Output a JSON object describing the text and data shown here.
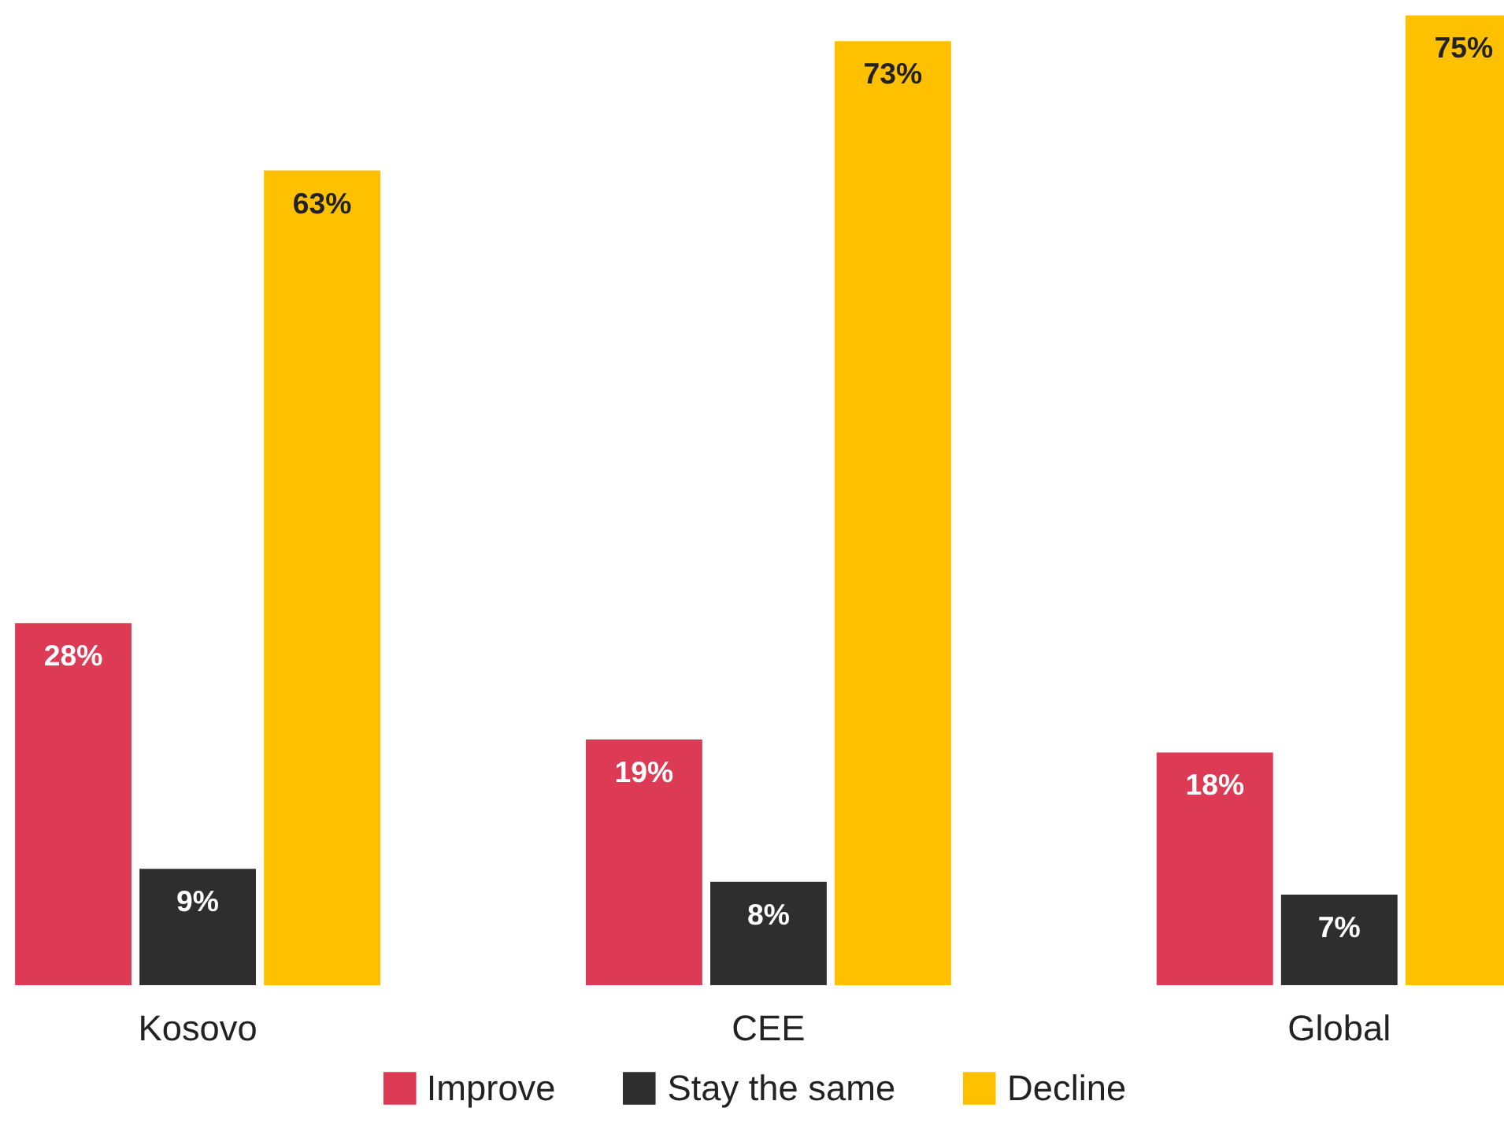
{
  "chart_data": {
    "type": "bar",
    "categories": [
      "Kosovo",
      "CEE",
      "Global"
    ],
    "series": [
      {
        "name": "Improve",
        "color": "#dc3a55",
        "values": [
          28,
          19,
          18
        ],
        "value_labels": [
          "28%",
          "19%",
          "18%"
        ]
      },
      {
        "name": "Stay the same",
        "color": "#2e2e2e",
        "values": [
          9,
          8,
          7
        ],
        "value_labels": [
          "9%",
          "8%",
          "7%"
        ]
      },
      {
        "name": "Decline",
        "color": "#ffc000",
        "values": [
          63,
          73,
          75
        ],
        "value_labels": [
          "63%",
          "73%",
          "75%"
        ]
      }
    ],
    "grid": false,
    "legend": "bottom",
    "tick_labels": "x"
  }
}
